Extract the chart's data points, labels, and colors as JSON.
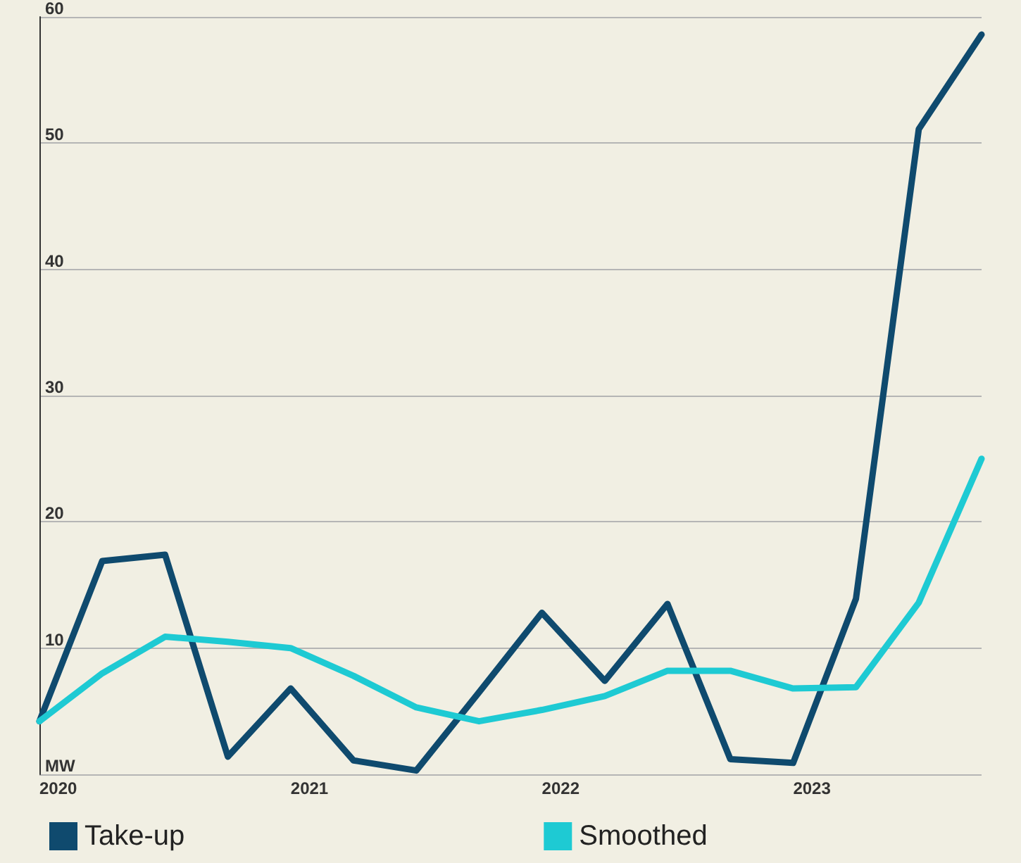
{
  "chart_data": {
    "type": "line",
    "categories": [
      "2020",
      null,
      null,
      null,
      "2021",
      null,
      null,
      null,
      "2022",
      null,
      null,
      null,
      "2023",
      null,
      null,
      null
    ],
    "series": [
      {
        "name": "Take-up",
        "color": "#0f4a6e",
        "values": [
          4.2,
          16.9,
          17.4,
          1.4,
          6.8,
          1.1,
          0.3,
          6.5,
          12.8,
          7.4,
          13.5,
          1.2,
          0.9,
          13.9,
          51.1,
          58.6
        ]
      },
      {
        "name": "Smoothed",
        "color": "#1ecad3",
        "values": [
          4.2,
          8.0,
          10.9,
          10.5,
          10.0,
          7.8,
          5.3,
          4.2,
          5.1,
          6.2,
          8.2,
          8.2,
          6.8,
          6.9,
          13.6,
          25.0
        ]
      }
    ],
    "ylim": [
      0,
      60
    ],
    "yticks": [
      {
        "value": 0,
        "label": "MW"
      },
      10,
      20,
      30,
      40,
      50,
      60
    ],
    "grid": "y",
    "legend": "bottom",
    "marker": "none",
    "line_style": "solid"
  }
}
